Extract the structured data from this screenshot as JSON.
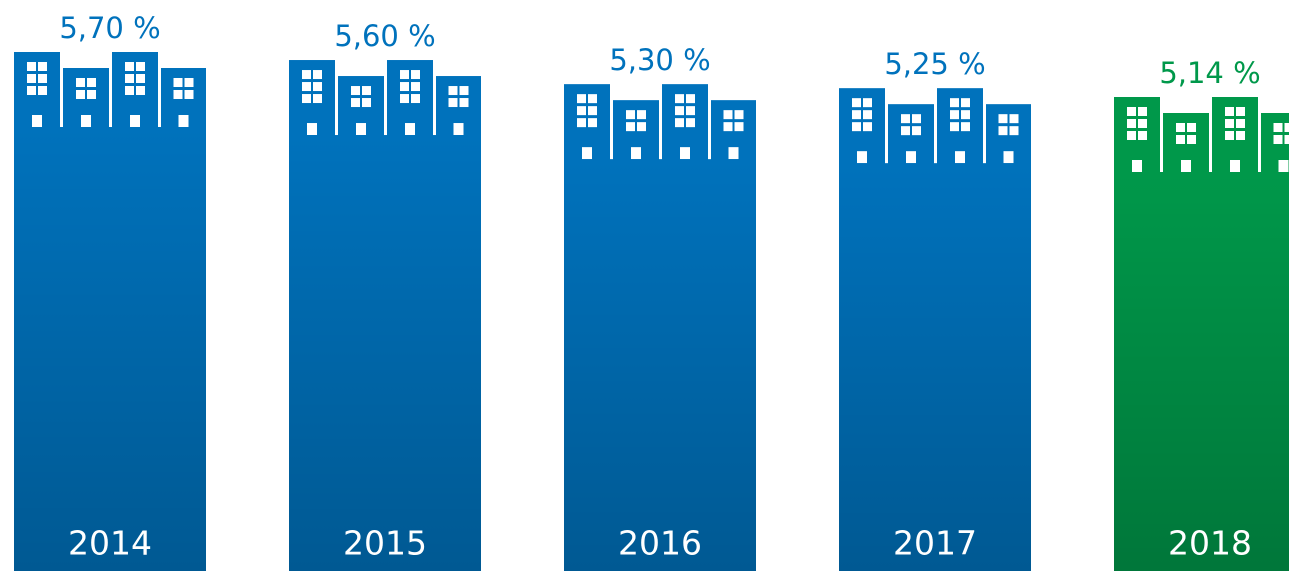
{
  "chart_data": {
    "type": "bar",
    "categories": [
      "2014",
      "2015",
      "2016",
      "2017",
      "2018"
    ],
    "values": [
      5.7,
      5.6,
      5.3,
      5.25,
      5.14
    ],
    "value_labels": [
      "5,70 %",
      "5,60 %",
      "5,30 %",
      "5,25 %",
      "5,14 %"
    ],
    "colors": [
      "#0072bc",
      "#0072bc",
      "#0072bc",
      "#0072bc",
      "#00984a"
    ]
  }
}
